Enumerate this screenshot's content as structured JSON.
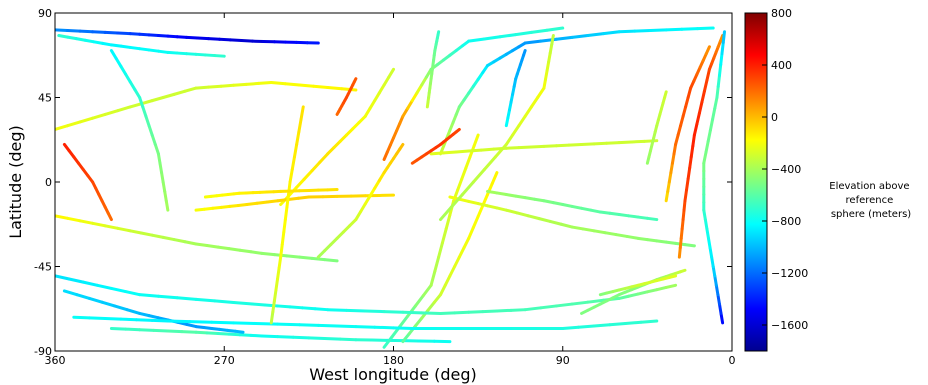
{
  "chart_data": {
    "type": "scatter",
    "description_mode": "elevation ground-track map",
    "xlabel": "West longitude (deg)",
    "ylabel": "Latitude (deg)",
    "xlim": [
      360,
      0
    ],
    "ylim": [
      -90,
      90
    ],
    "x_ticks": [
      360,
      270,
      180,
      90,
      0
    ],
    "y_ticks": [
      90,
      45,
      0,
      -45,
      -90
    ],
    "grid": false,
    "colorbar": {
      "label_lines": [
        "Elevation above",
        "reference",
        "sphere (meters)"
      ],
      "range": [
        -1800,
        800
      ],
      "ticks": [
        800,
        400,
        0,
        -400,
        -800,
        -1200,
        -1600
      ],
      "colormap": "jet"
    },
    "series": [
      {
        "type": "track",
        "points": [
          [
            360,
            81,
            -1100
          ],
          [
            320,
            79,
            -1300
          ],
          [
            290,
            77,
            -1500
          ],
          [
            255,
            75,
            -1600
          ],
          [
            220,
            74,
            -1400
          ]
        ]
      },
      {
        "type": "track",
        "points": [
          [
            358,
            78,
            -700
          ],
          [
            330,
            73,
            -850
          ],
          [
            300,
            69,
            -800
          ],
          [
            270,
            67,
            -700
          ]
        ]
      },
      {
        "type": "track",
        "points": [
          [
            155,
            15,
            -300
          ],
          [
            145,
            40,
            -500
          ],
          [
            130,
            62,
            -900
          ],
          [
            110,
            74,
            -1100
          ],
          [
            60,
            80,
            -900
          ],
          [
            10,
            82,
            -800
          ]
        ]
      },
      {
        "type": "track",
        "points": [
          [
            185,
            12,
            200
          ],
          [
            175,
            35,
            100
          ],
          [
            160,
            60,
            -500
          ],
          [
            140,
            75,
            -800
          ],
          [
            90,
            82,
            -700
          ]
        ]
      },
      {
        "type": "track",
        "points": [
          [
            240,
            -12,
            -200
          ],
          [
            215,
            15,
            -100
          ],
          [
            195,
            35,
            -200
          ],
          [
            180,
            60,
            -300
          ]
        ]
      },
      {
        "type": "track",
        "points": [
          [
            330,
            -78,
            -700
          ],
          [
            285,
            -80,
            -600
          ],
          [
            250,
            -82,
            -800
          ],
          [
            200,
            -84,
            -700
          ],
          [
            150,
            -85,
            -800
          ]
        ]
      },
      {
        "type": "track",
        "points": [
          [
            355,
            -58,
            -900
          ],
          [
            315,
            -70,
            -1000
          ],
          [
            285,
            -77,
            -1100
          ],
          [
            260,
            -80,
            -1000
          ]
        ]
      },
      {
        "type": "track",
        "points": [
          [
            185,
            -88,
            -700
          ],
          [
            160,
            -55,
            -400
          ],
          [
            148,
            -10,
            -250
          ],
          [
            135,
            25,
            -200
          ]
        ]
      },
      {
        "type": "track",
        "points": [
          [
            175,
            -85,
            -600
          ],
          [
            155,
            -60,
            -300
          ],
          [
            140,
            -30,
            -200
          ],
          [
            125,
            5,
            -150
          ]
        ]
      },
      {
        "type": "track",
        "points": [
          [
            360,
            -50,
            -900
          ],
          [
            315,
            -60,
            -800
          ],
          [
            255,
            -65,
            -750
          ],
          [
            215,
            -68,
            -800
          ],
          [
            155,
            -70,
            -650
          ],
          [
            110,
            -68,
            -650
          ],
          [
            60,
            -62,
            -600
          ],
          [
            30,
            -55,
            -400
          ]
        ]
      },
      {
        "type": "track",
        "points": [
          [
            350,
            -72,
            -800
          ],
          [
            300,
            -74,
            -850
          ],
          [
            230,
            -76,
            -800
          ],
          [
            170,
            -78,
            -800
          ],
          [
            90,
            -78,
            -750
          ],
          [
            40,
            -74,
            -700
          ]
        ]
      },
      {
        "type": "track",
        "points": [
          [
            360,
            28,
            -200
          ],
          [
            320,
            40,
            -300
          ],
          [
            285,
            50,
            -300
          ],
          [
            245,
            53,
            -200
          ],
          [
            200,
            49,
            -150
          ]
        ]
      },
      {
        "type": "track",
        "points": [
          [
            285,
            -15,
            -200
          ],
          [
            258,
            -12,
            -100
          ],
          [
            225,
            -8,
            -50
          ],
          [
            180,
            -7,
            -100
          ]
        ]
      },
      {
        "type": "track",
        "points": [
          [
            360,
            -18,
            -150
          ],
          [
            320,
            -26,
            -300
          ],
          [
            285,
            -33,
            -400
          ],
          [
            250,
            -38,
            -450
          ],
          [
            210,
            -42,
            -500
          ]
        ]
      },
      {
        "type": "track",
        "points": [
          [
            150,
            -8,
            -200
          ],
          [
            120,
            -15,
            -300
          ],
          [
            85,
            -24,
            -400
          ],
          [
            50,
            -30,
            -450
          ],
          [
            20,
            -34,
            -500
          ]
        ]
      },
      {
        "type": "track",
        "points": [
          [
            160,
            15,
            -250
          ],
          [
            120,
            18,
            -300
          ],
          [
            80,
            20,
            -300
          ],
          [
            40,
            22,
            -300
          ]
        ]
      },
      {
        "type": "track",
        "points": [
          [
            130,
            -5,
            -400
          ],
          [
            100,
            -10,
            -500
          ],
          [
            70,
            -16,
            -600
          ],
          [
            40,
            -20,
            -650
          ]
        ]
      },
      {
        "type": "track",
        "points": [
          [
            28,
            -40,
            100
          ],
          [
            25,
            -10,
            300
          ],
          [
            20,
            25,
            400
          ],
          [
            12,
            60,
            300
          ],
          [
            5,
            78,
            100
          ]
        ]
      },
      {
        "type": "track",
        "points": [
          [
            35,
            -10,
            -100
          ],
          [
            30,
            20,
            200
          ],
          [
            22,
            50,
            300
          ],
          [
            12,
            72,
            100
          ]
        ]
      },
      {
        "type": "track",
        "points": [
          [
            5,
            -75,
            -1500
          ],
          [
            10,
            -45,
            -900
          ],
          [
            15,
            -15,
            -700
          ],
          [
            15,
            10,
            -500
          ],
          [
            8,
            45,
            -600
          ],
          [
            4,
            80,
            -1000
          ]
        ]
      },
      {
        "type": "track",
        "points": [
          [
            155,
            -20,
            -400
          ],
          [
            120,
            20,
            -300
          ],
          [
            100,
            50,
            -200
          ],
          [
            95,
            78,
            -350
          ]
        ]
      },
      {
        "type": "track",
        "points": [
          [
            300,
            -15,
            -400
          ],
          [
            305,
            15,
            -500
          ],
          [
            315,
            45,
            -700
          ],
          [
            330,
            70,
            -850
          ]
        ]
      },
      {
        "type": "track",
        "points": [
          [
            245,
            -75,
            -350
          ],
          [
            240,
            -40,
            -200
          ],
          [
            235,
            0,
            -150
          ],
          [
            228,
            40,
            -100
          ]
        ]
      },
      {
        "type": "track",
        "points": [
          [
            170,
            10,
            250
          ],
          [
            155,
            20,
            350
          ],
          [
            145,
            28,
            300
          ]
        ]
      },
      {
        "type": "track",
        "points": [
          [
            210,
            36,
            200
          ],
          [
            205,
            45,
            300
          ],
          [
            200,
            55,
            250
          ]
        ]
      },
      {
        "type": "track",
        "points": [
          [
            162,
            40,
            -300
          ],
          [
            160,
            55,
            -450
          ],
          [
            158,
            70,
            -550
          ],
          [
            156,
            80,
            -700
          ]
        ]
      },
      {
        "type": "track",
        "points": [
          [
            280,
            -8,
            -200
          ],
          [
            262,
            -6,
            -150
          ],
          [
            240,
            -5,
            -100
          ],
          [
            210,
            -4,
            -100
          ]
        ]
      },
      {
        "type": "track",
        "points": [
          [
            45,
            10,
            -450
          ],
          [
            40,
            30,
            -350
          ],
          [
            35,
            48,
            -300
          ]
        ]
      },
      {
        "type": "track",
        "points": [
          [
            80,
            -70,
            -500
          ],
          [
            60,
            -60,
            -500
          ],
          [
            40,
            -52,
            -450
          ],
          [
            25,
            -47,
            -300
          ]
        ]
      },
      {
        "type": "track",
        "points": [
          [
            70,
            -60,
            -500
          ],
          [
            50,
            -55,
            -300
          ],
          [
            30,
            -50,
            -250
          ]
        ]
      },
      {
        "type": "track",
        "points": [
          [
            355,
            20,
            400
          ],
          [
            340,
            0,
            300
          ],
          [
            330,
            -20,
            200
          ]
        ]
      },
      {
        "type": "track",
        "points": [
          [
            220,
            -40,
            -400
          ],
          [
            200,
            -20,
            -300
          ],
          [
            185,
            5,
            -100
          ],
          [
            175,
            20,
            0
          ]
        ]
      },
      {
        "type": "track",
        "points": [
          [
            120,
            30,
            -800
          ],
          [
            115,
            55,
            -1000
          ],
          [
            110,
            70,
            -1100
          ]
        ]
      }
    ]
  }
}
